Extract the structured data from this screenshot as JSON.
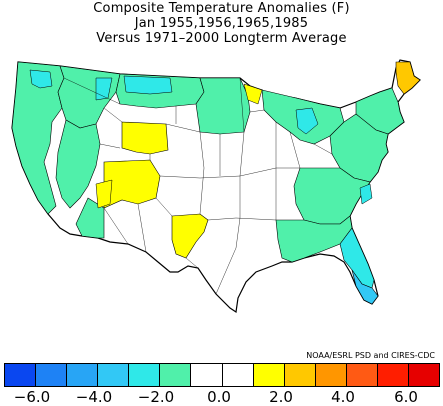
{
  "title": {
    "line1": "Composite Temperature Anomalies (F)",
    "line2": "Jan   1955,1956,1965,1985",
    "line3": "Versus 1971–2000 Longterm Average"
  },
  "credit": "NOAA/ESRL PSD and CIRES-CDC",
  "legend": {
    "colors": [
      "#0a47f0",
      "#1e82f5",
      "#28a5f5",
      "#32c8f5",
      "#2fe8e8",
      "#50f0aa",
      "#ffffff",
      "#ffffff",
      "#ffff00",
      "#ffc800",
      "#ff9600",
      "#ff5a14",
      "#ff1e00",
      "#e60000"
    ],
    "ticks": [
      "−6.0",
      "−4.0",
      "−2.0",
      "0.0",
      "2.0",
      "4.0",
      "6.0"
    ]
  },
  "map_colors": {
    "outline": "#000000",
    "cool": "#50f0aa",
    "cyan": "#2fe8e8",
    "light_blue": "#32c8f5",
    "warm": "#ffff00",
    "hot": "#ffc800"
  }
}
